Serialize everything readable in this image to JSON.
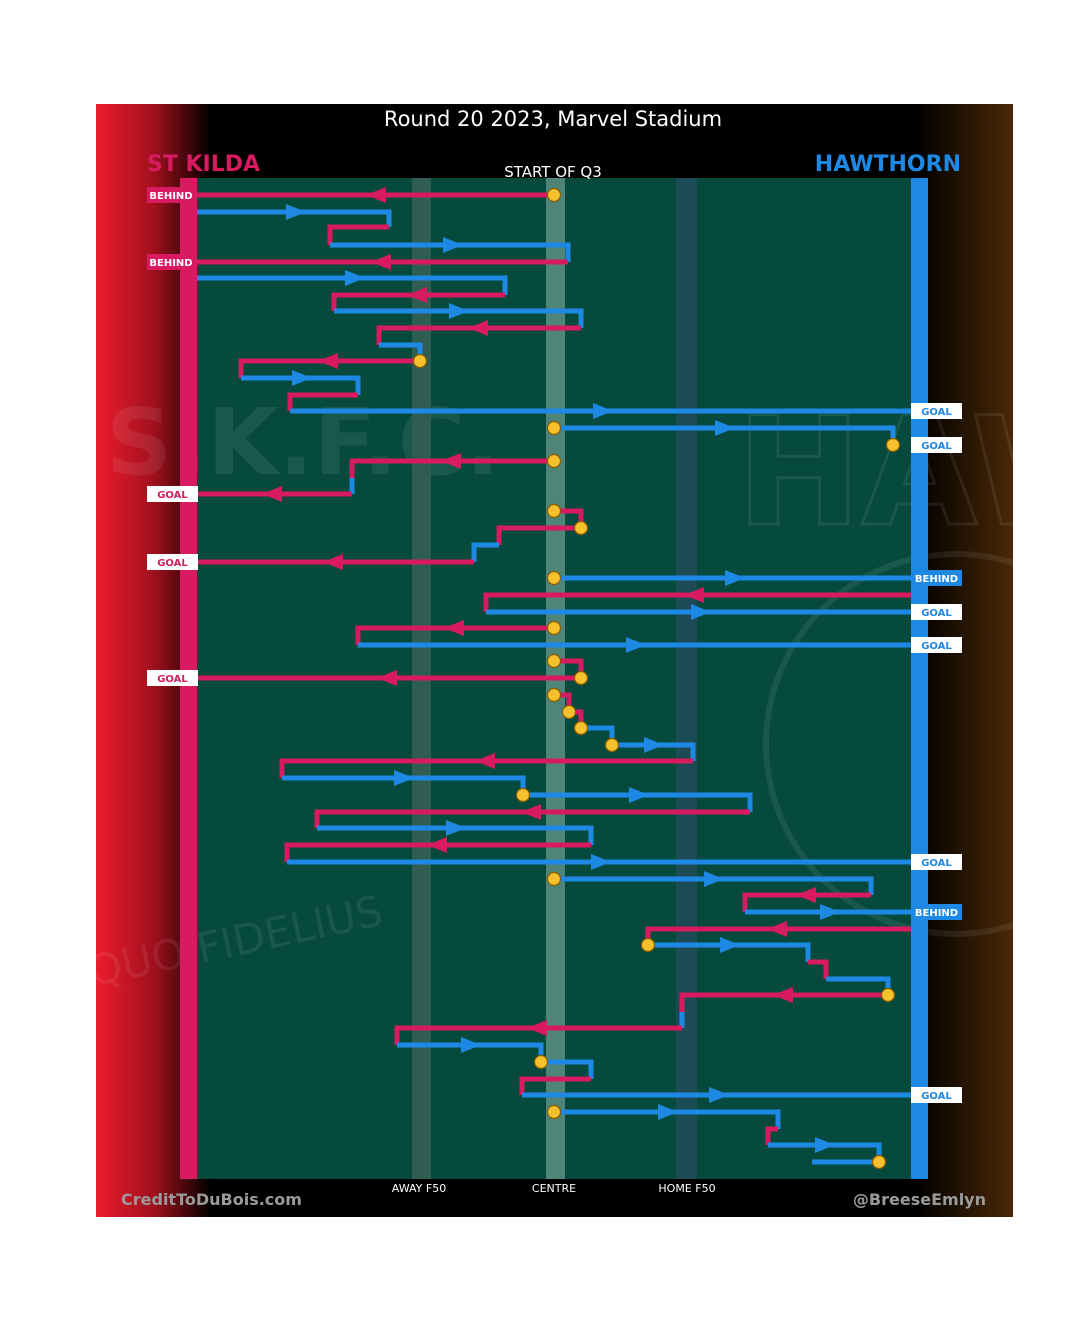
{
  "header": {
    "title": "Round 20 2023, Marvel Stadium",
    "period": "START OF Q3"
  },
  "teams": {
    "home_side": {
      "name": "ST KILDA",
      "color": "#d81b60"
    },
    "away_side": {
      "name": "HAWTHORN",
      "color": "#1e88e5"
    }
  },
  "axis": {
    "away_f50": "AWAY F50",
    "centre": "CENTRE",
    "home_f50": "HOME F50"
  },
  "credits": {
    "left": "CreditToDuBois.com",
    "right": "@BreeseEmlyn"
  },
  "watermarks": {
    "left": "S.K.F.C.",
    "left_motto": "QUO FIDELIUS",
    "right": "HAW"
  },
  "colors": {
    "field": "#064a3d",
    "st_kilda": "#d81b60",
    "hawthorn": "#1e88e5",
    "marker": "#f7c12e",
    "background": "#000000"
  },
  "outcome_labels": [
    {
      "side": "left",
      "text": "BEHIND"
    },
    {
      "side": "left",
      "text": "BEHIND"
    },
    {
      "side": "right",
      "text": "GOAL"
    },
    {
      "side": "right",
      "text": "GOAL"
    },
    {
      "side": "left",
      "text": "GOAL"
    },
    {
      "side": "left",
      "text": "GOAL"
    },
    {
      "side": "right",
      "text": "BEHIND"
    },
    {
      "side": "right",
      "text": "GOAL"
    },
    {
      "side": "right",
      "text": "GOAL"
    },
    {
      "side": "left",
      "text": "GOAL"
    },
    {
      "side": "right",
      "text": "GOAL"
    },
    {
      "side": "right",
      "text": "BEHIND"
    },
    {
      "side": "right",
      "text": "GOAL"
    }
  ]
}
